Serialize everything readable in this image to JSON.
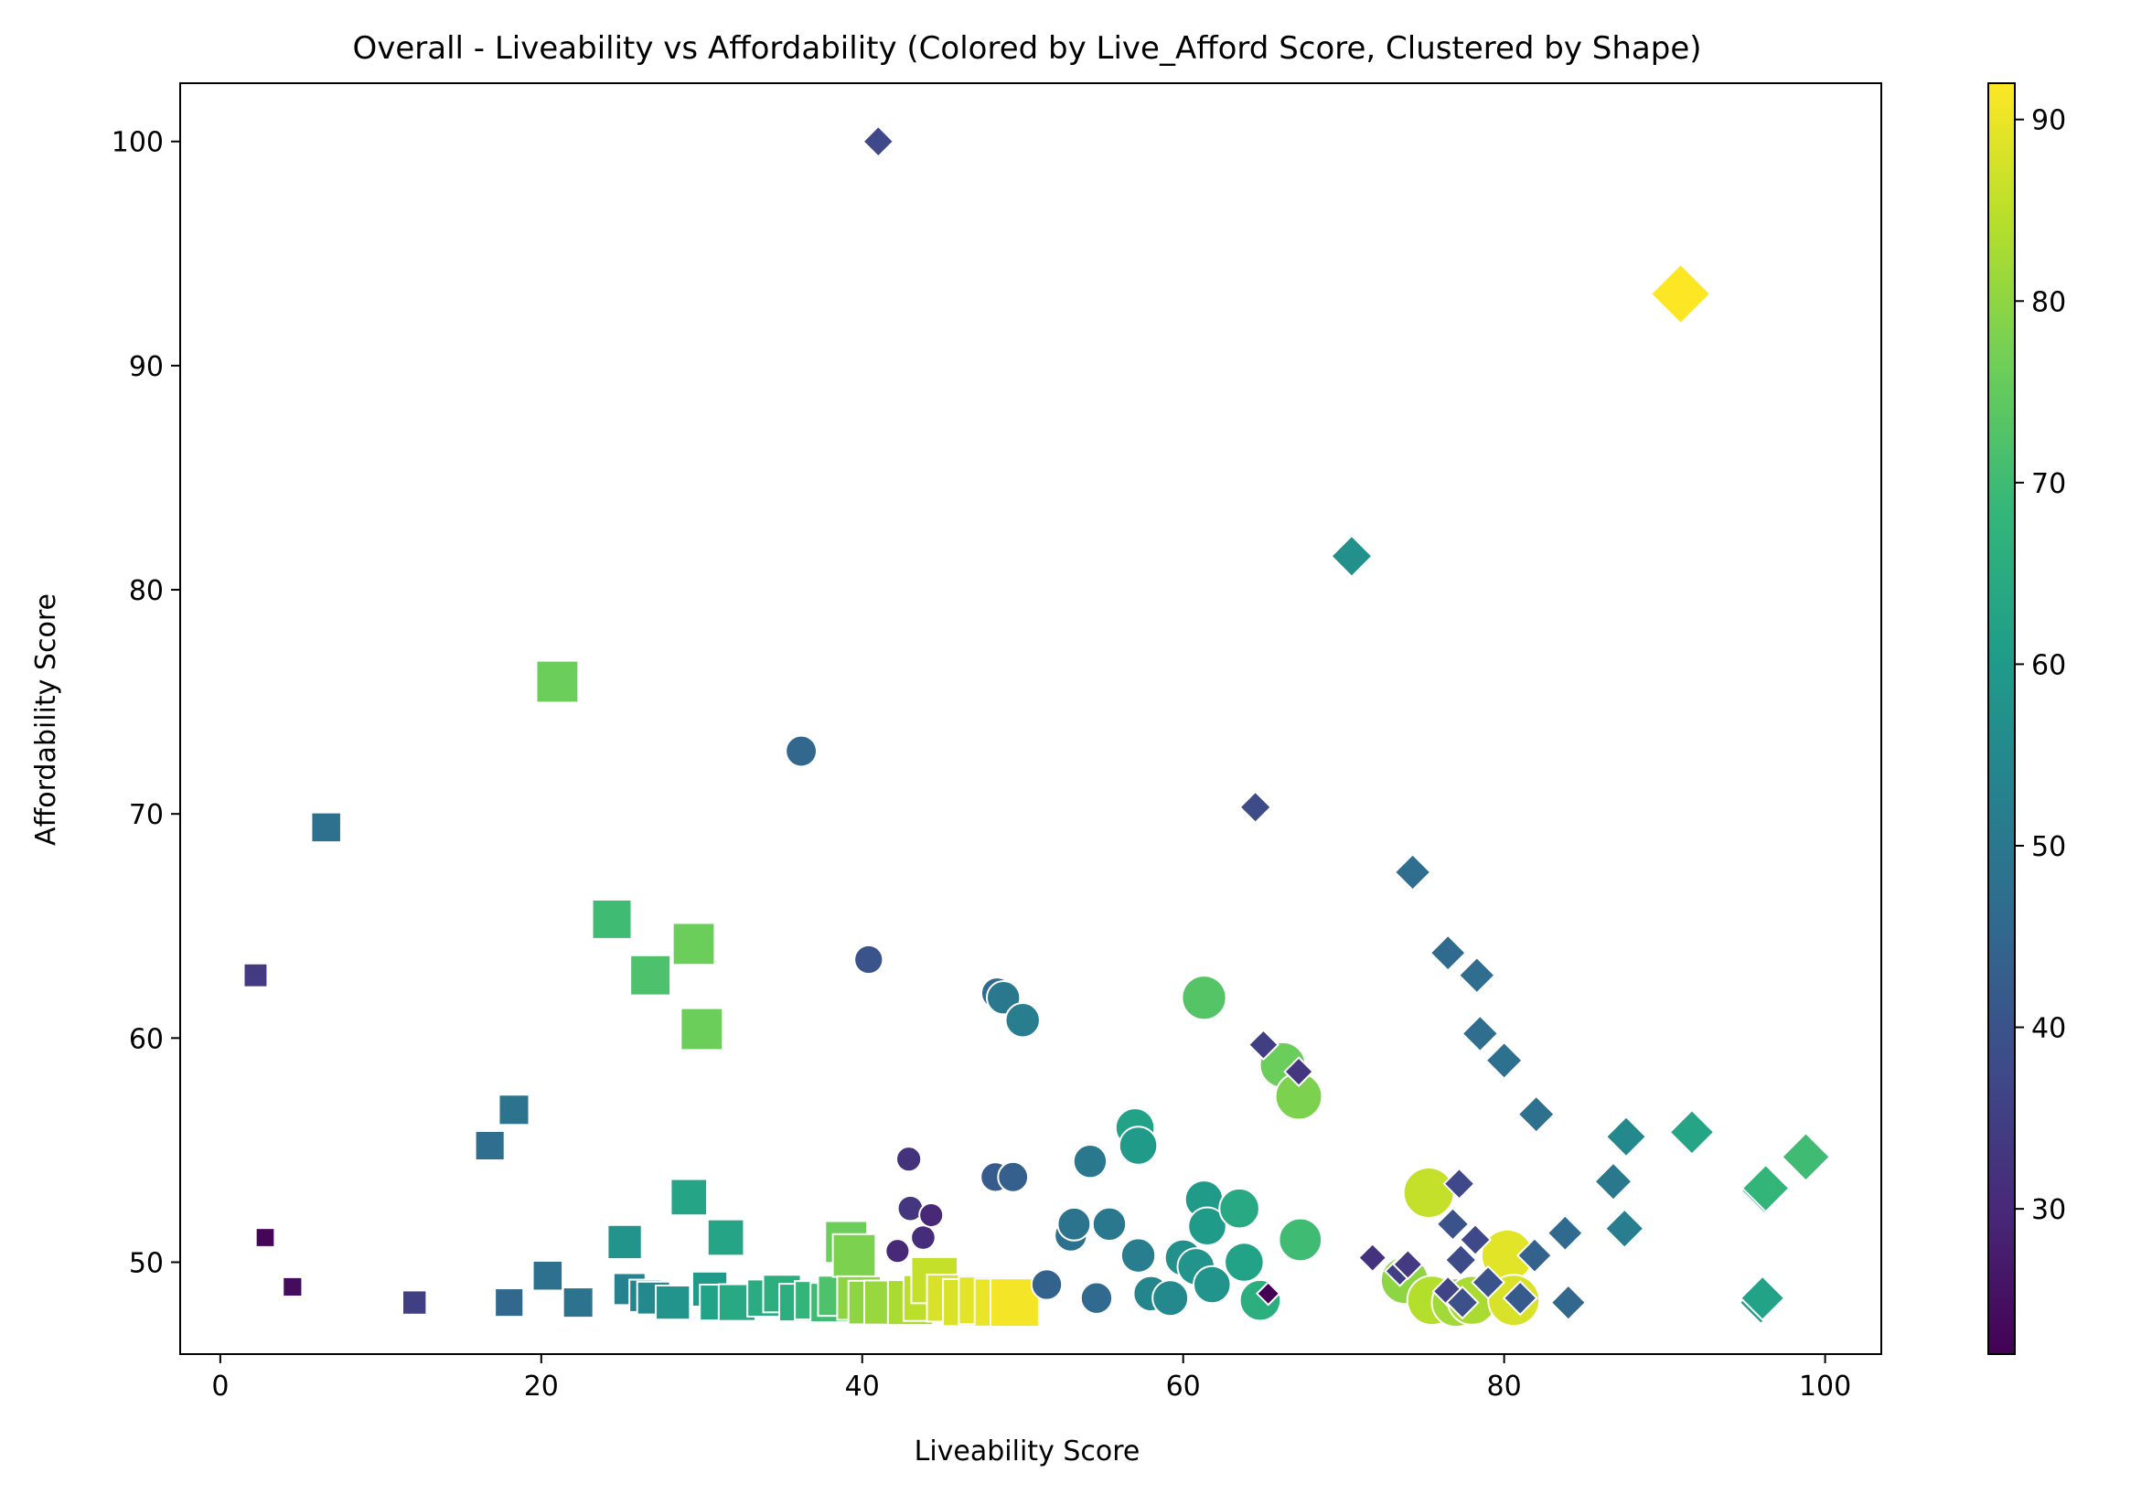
{
  "chart_data": {
    "type": "scatter",
    "title": "Overall - Liveability vs Affordability (Colored by Live_Afford Score, Clustered by Shape)",
    "xlabel": "Liveability Score",
    "ylabel": "Affordability Score",
    "xlim": [
      -2.5,
      103.5
    ],
    "ylim": [
      45.9,
      102.6
    ],
    "xticks": [
      0,
      20,
      40,
      60,
      80,
      100
    ],
    "yticks": [
      50,
      60,
      70,
      80,
      90,
      100
    ],
    "colorbar": {
      "label": "",
      "range": [
        22,
        92
      ],
      "ticks": [
        30,
        40,
        50,
        60,
        70,
        80,
        90
      ],
      "colormap": "viridis"
    },
    "grid": false,
    "legend": "none",
    "marker_note": "Marker size grows with Live_Afford score; shape = cluster",
    "series": [
      {
        "marker": "square",
        "points": [
          [
            2.2,
            62.8,
            34
          ],
          [
            2.8,
            51.1,
            23
          ],
          [
            4.5,
            48.9,
            24
          ],
          [
            6.6,
            69.4,
            48
          ],
          [
            12.1,
            48.2,
            35
          ],
          [
            16.8,
            55.2,
            47
          ],
          [
            18.3,
            56.8,
            49
          ],
          [
            18.0,
            48.2,
            45
          ],
          [
            20.4,
            49.4,
            48
          ],
          [
            21.0,
            75.9,
            76
          ],
          [
            22.3,
            48.2,
            49
          ],
          [
            24.4,
            65.3,
            70
          ],
          [
            25.2,
            50.9,
            58
          ],
          [
            25.5,
            48.8,
            53
          ],
          [
            26.5,
            48.5,
            54
          ],
          [
            26.8,
            62.8,
            72
          ],
          [
            27.0,
            48.4,
            55
          ],
          [
            28.2,
            48.2,
            58
          ],
          [
            29.2,
            52.9,
            63
          ],
          [
            29.5,
            64.2,
            76
          ],
          [
            30.0,
            60.4,
            76
          ],
          [
            30.5,
            48.8,
            60
          ],
          [
            31.0,
            48.2,
            62
          ],
          [
            31.5,
            51.1,
            63
          ],
          [
            32.2,
            48.2,
            64
          ],
          [
            34.0,
            48.4,
            65
          ],
          [
            35.0,
            48.6,
            66
          ],
          [
            36.0,
            48.2,
            66
          ],
          [
            37.0,
            48.3,
            68
          ],
          [
            38.0,
            48.2,
            70
          ],
          [
            38.5,
            48.5,
            72
          ],
          [
            39.0,
            50.9,
            76
          ],
          [
            39.5,
            50.3,
            78
          ],
          [
            39.8,
            48.4,
            80
          ],
          [
            40.5,
            48.2,
            80
          ],
          [
            41.5,
            48.2,
            81
          ],
          [
            43.0,
            48.2,
            83
          ],
          [
            44.0,
            48.4,
            85
          ],
          [
            44.5,
            49.2,
            86
          ],
          [
            45.5,
            48.4,
            88
          ],
          [
            46.5,
            48.2,
            88
          ],
          [
            47.5,
            48.3,
            89
          ],
          [
            48.5,
            48.2,
            90
          ],
          [
            49.5,
            48.2,
            91
          ]
        ]
      },
      {
        "marker": "circle",
        "points": [
          [
            36.2,
            72.8,
            45
          ],
          [
            40.4,
            63.5,
            40
          ],
          [
            42.2,
            50.5,
            30
          ],
          [
            42.9,
            54.6,
            32
          ],
          [
            43.0,
            52.4,
            33
          ],
          [
            43.8,
            51.1,
            31
          ],
          [
            44.3,
            52.1,
            30
          ],
          [
            48.3,
            53.8,
            42
          ],
          [
            48.4,
            62.0,
            46
          ],
          [
            48.8,
            61.8,
            50
          ],
          [
            49.4,
            53.8,
            43
          ],
          [
            50.0,
            60.8,
            52
          ],
          [
            51.5,
            49.0,
            44
          ],
          [
            53.0,
            51.2,
            48
          ],
          [
            53.2,
            51.7,
            49
          ],
          [
            54.2,
            54.5,
            50
          ],
          [
            54.6,
            48.4,
            46
          ],
          [
            55.4,
            51.7,
            50
          ],
          [
            57.0,
            56.0,
            62
          ],
          [
            57.2,
            55.2,
            60
          ],
          [
            57.2,
            50.3,
            52
          ],
          [
            58.0,
            48.6,
            54
          ],
          [
            59.2,
            48.4,
            55
          ],
          [
            60.0,
            50.2,
            57
          ],
          [
            60.8,
            49.8,
            58
          ],
          [
            61.3,
            52.8,
            60
          ],
          [
            61.3,
            61.8,
            73
          ],
          [
            61.5,
            51.6,
            60
          ],
          [
            61.8,
            49.0,
            58
          ],
          [
            63.5,
            52.4,
            64
          ],
          [
            63.8,
            50.0,
            62
          ],
          [
            64.8,
            48.3,
            66
          ],
          [
            66.2,
            58.8,
            76
          ],
          [
            67.2,
            57.4,
            78
          ],
          [
            67.3,
            51.0,
            70
          ],
          [
            73.8,
            49.2,
            80
          ],
          [
            75.3,
            53.1,
            86
          ],
          [
            75.5,
            48.3,
            84
          ],
          [
            77.0,
            48.2,
            82
          ],
          [
            78.0,
            48.3,
            83
          ],
          [
            80.2,
            50.3,
            89
          ],
          [
            80.6,
            48.3,
            88
          ]
        ]
      },
      {
        "marker": "diamond",
        "points": [
          [
            41.0,
            100.0,
            37
          ],
          [
            64.5,
            70.3,
            38
          ],
          [
            65.0,
            59.7,
            35
          ],
          [
            65.3,
            48.6,
            22
          ],
          [
            67.2,
            58.5,
            33
          ],
          [
            70.5,
            81.5,
            57
          ],
          [
            71.8,
            50.2,
            32
          ],
          [
            73.5,
            49.6,
            35
          ],
          [
            74.0,
            49.9,
            34
          ],
          [
            74.3,
            67.4,
            47
          ],
          [
            76.5,
            63.8,
            46
          ],
          [
            76.5,
            48.7,
            36
          ],
          [
            76.8,
            51.7,
            40
          ],
          [
            77.2,
            53.5,
            37
          ],
          [
            77.3,
            50.1,
            38
          ],
          [
            77.4,
            48.2,
            39
          ],
          [
            78.2,
            51.0,
            37
          ],
          [
            78.3,
            62.8,
            47
          ],
          [
            78.5,
            60.2,
            47
          ],
          [
            79.0,
            49.1,
            40
          ],
          [
            80.0,
            59.0,
            48
          ],
          [
            81.0,
            48.4,
            42
          ],
          [
            81.9,
            50.3,
            44
          ],
          [
            82.0,
            56.6,
            48
          ],
          [
            83.8,
            51.3,
            46
          ],
          [
            84.0,
            48.2,
            45
          ],
          [
            86.8,
            53.6,
            50
          ],
          [
            87.5,
            51.5,
            52
          ],
          [
            87.6,
            55.6,
            55
          ],
          [
            91.0,
            93.2,
            92
          ],
          [
            91.7,
            55.8,
            63
          ],
          [
            96.0,
            48.2,
            60
          ],
          [
            96.1,
            48.4,
            62
          ],
          [
            96.2,
            53.2,
            66
          ],
          [
            96.3,
            53.3,
            68
          ],
          [
            98.8,
            54.7,
            70
          ]
        ]
      }
    ]
  }
}
